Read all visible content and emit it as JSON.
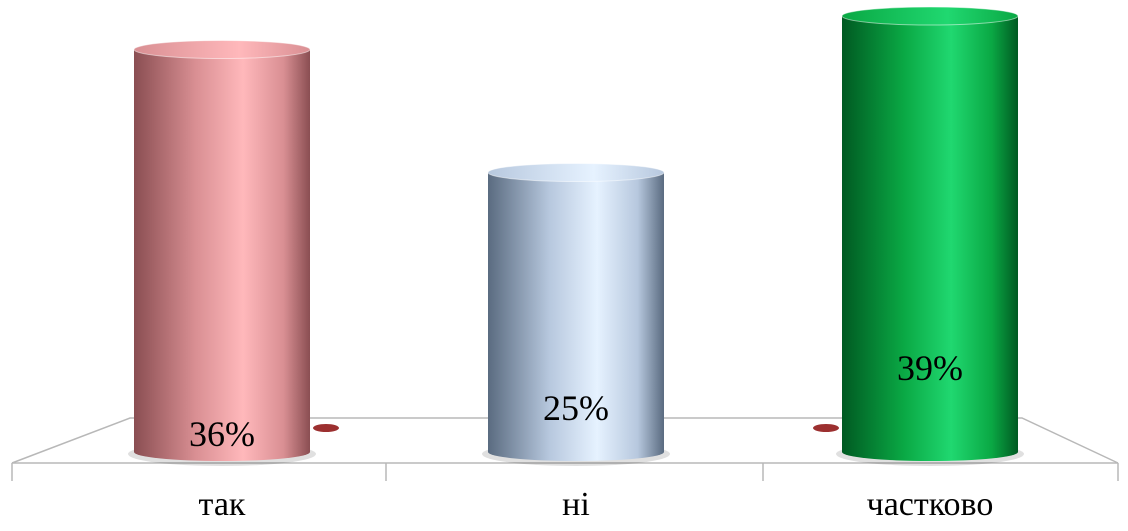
{
  "chart_data": {
    "type": "bar",
    "style": "3d-cylinder",
    "categories": [
      "так",
      "ні",
      "частково"
    ],
    "values": [
      36,
      25,
      39
    ],
    "data_labels": [
      "36%",
      "25%",
      "39%"
    ],
    "ylim": [
      0,
      40
    ],
    "grid": false,
    "legend": "none",
    "colors": {
      "так": {
        "dark": "#8a4e52",
        "mid": "#d98f93",
        "light": "#ffb8bb"
      },
      "ні": {
        "dark": "#5a6b80",
        "mid": "#b7c8de",
        "light": "#e6f2ff"
      },
      "частково": {
        "dark": "#005a22",
        "mid": "#0aa844",
        "light": "#20d870"
      },
      "floor_line": "#b8b8b8",
      "minor_disc": "#9c3030"
    }
  }
}
